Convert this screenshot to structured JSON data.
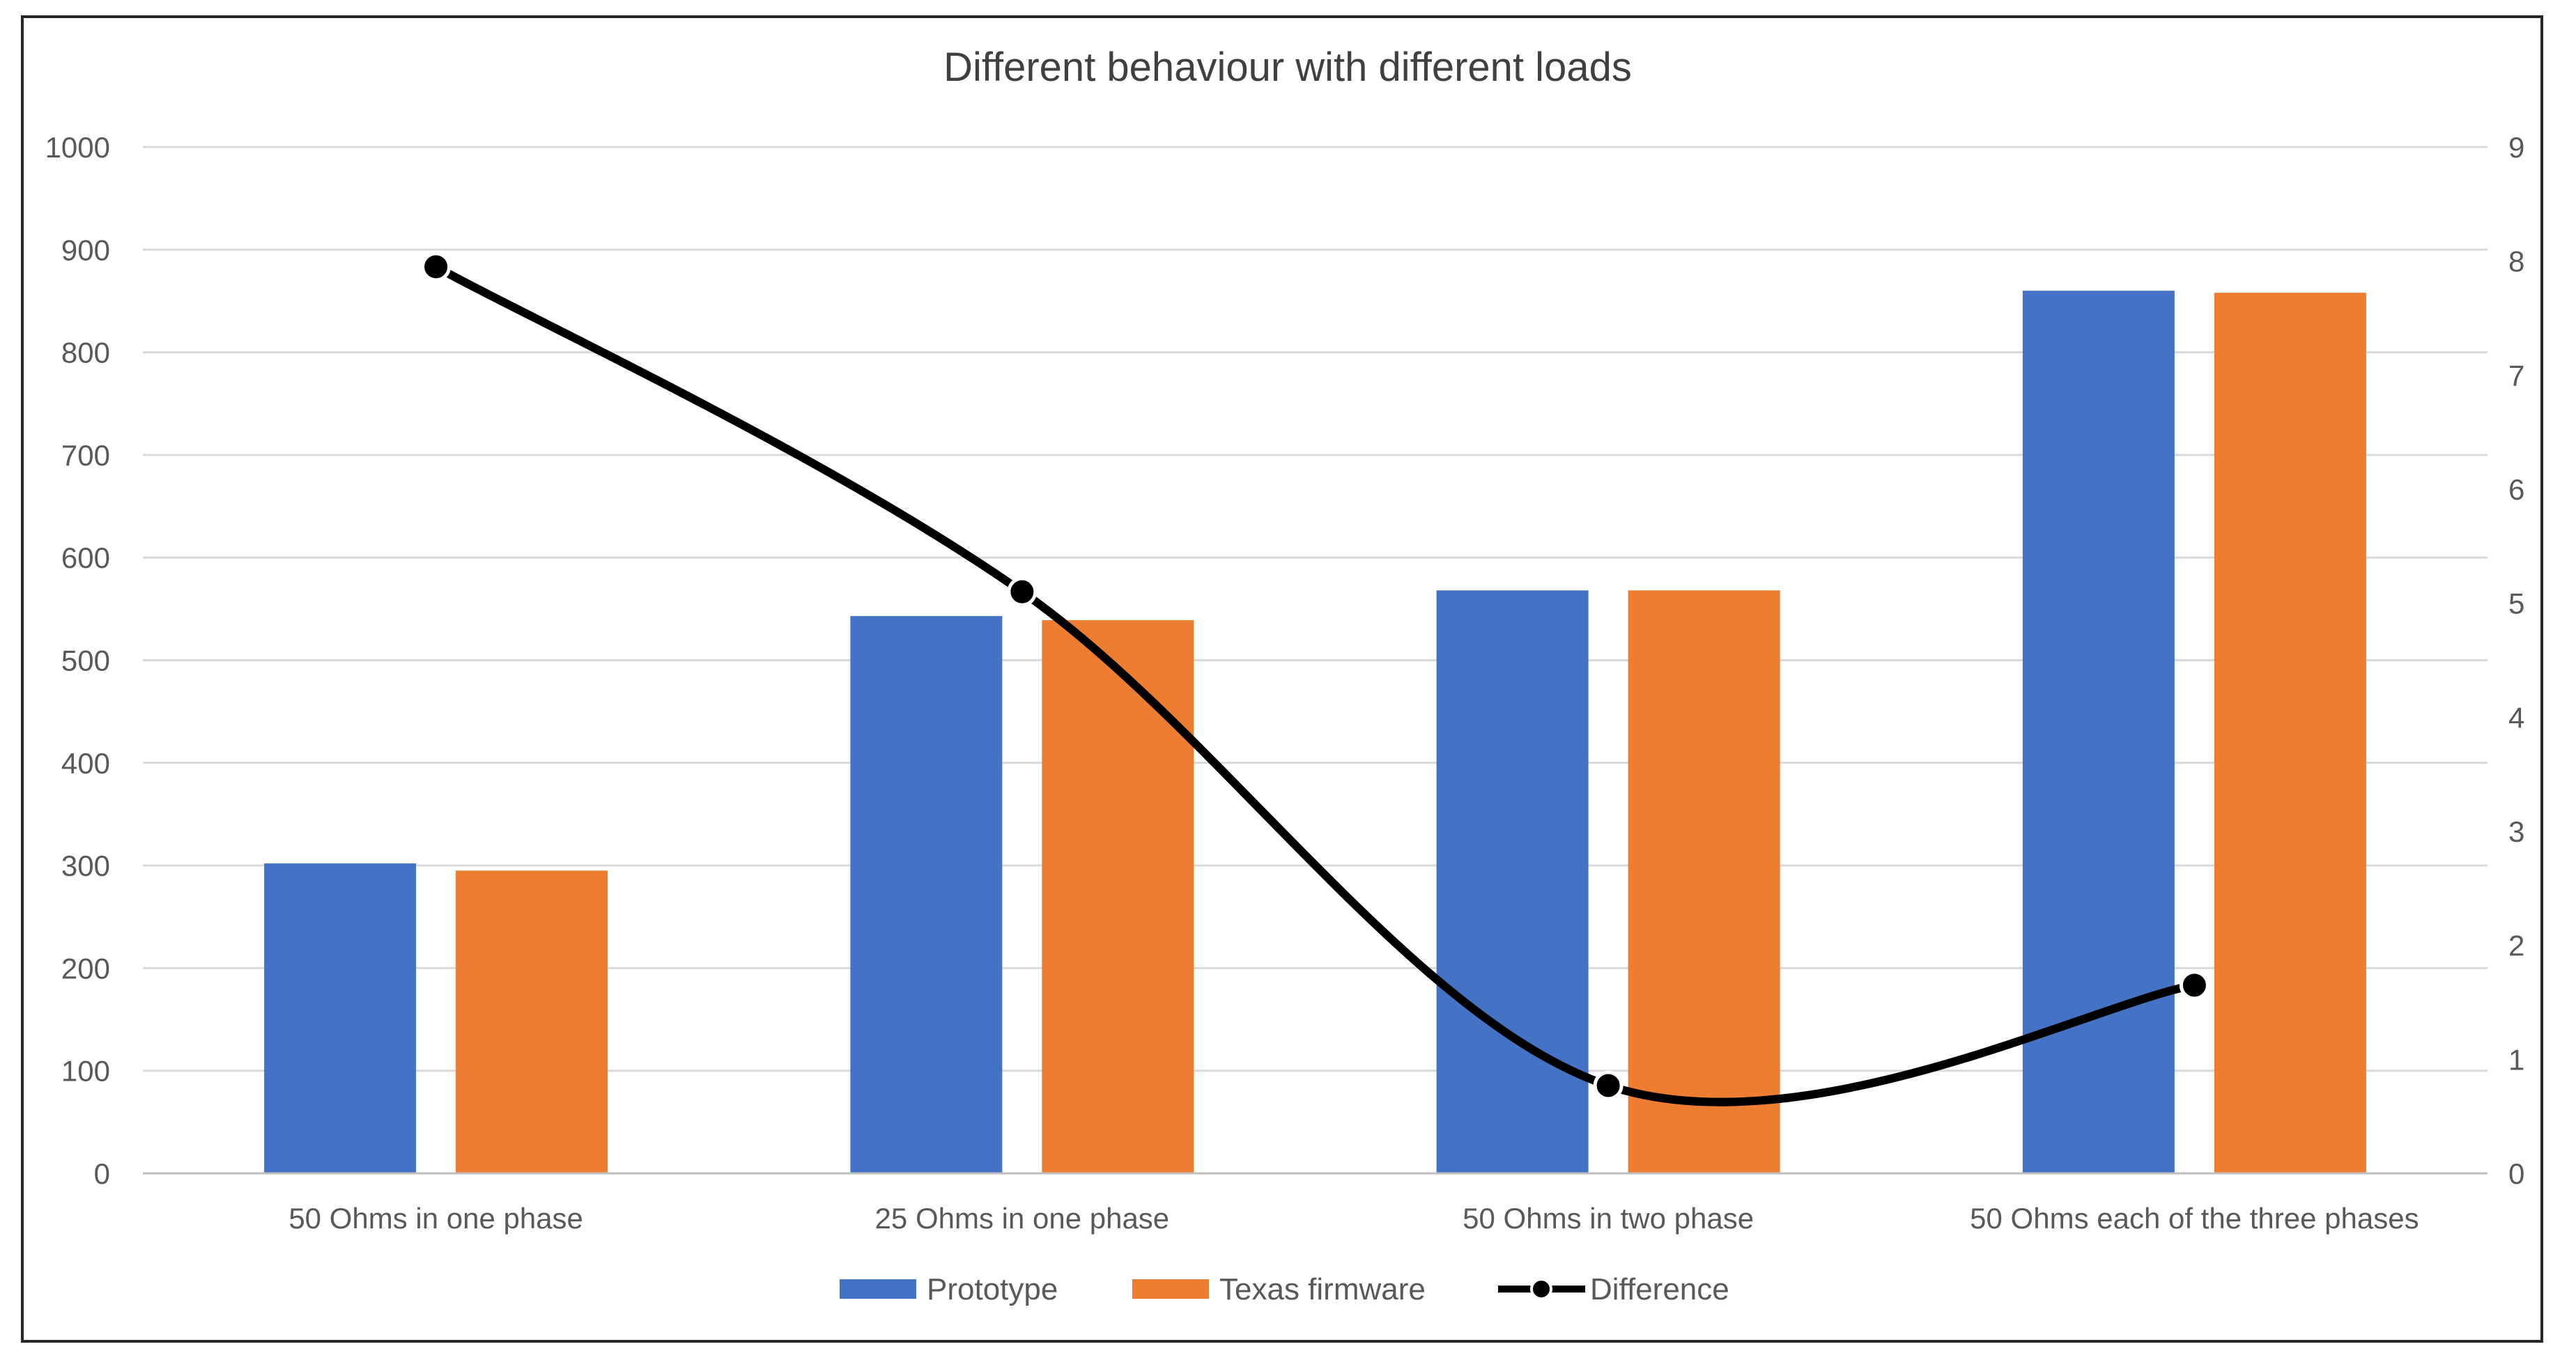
{
  "chart_data": {
    "type": "bar",
    "title": "Different behaviour with different loads",
    "categories": [
      "50 Ohms in one phase",
      "25 Ohms in one phase",
      "50 Ohms in two phase",
      "50 Ohms each of the three phases"
    ],
    "series": [
      {
        "name": "Prototype",
        "kind": "bar",
        "axis": "left",
        "color": "#4472C4",
        "values": [
          302,
          543,
          568,
          860
        ]
      },
      {
        "name": "Texas firmware",
        "kind": "bar",
        "axis": "left",
        "color": "#ED7D31",
        "values": [
          295,
          539,
          568,
          858
        ]
      },
      {
        "name": "Difference",
        "kind": "line",
        "axis": "right",
        "color": "#000000",
        "values": [
          7.95,
          5.1,
          0.77,
          1.65
        ]
      }
    ],
    "y_left": {
      "range": [
        0,
        1000
      ],
      "ticks": [
        "0",
        "100",
        "200",
        "300",
        "400",
        "500",
        "600",
        "700",
        "800",
        "900",
        "1000"
      ]
    },
    "y_right": {
      "range": [
        0,
        9
      ],
      "ticks": [
        "0",
        "1",
        "2",
        "3",
        "4",
        "5",
        "6",
        "7",
        "8",
        "9"
      ]
    },
    "xlabel": "",
    "ylabel": "",
    "grid": true,
    "legend_position": "bottom"
  }
}
